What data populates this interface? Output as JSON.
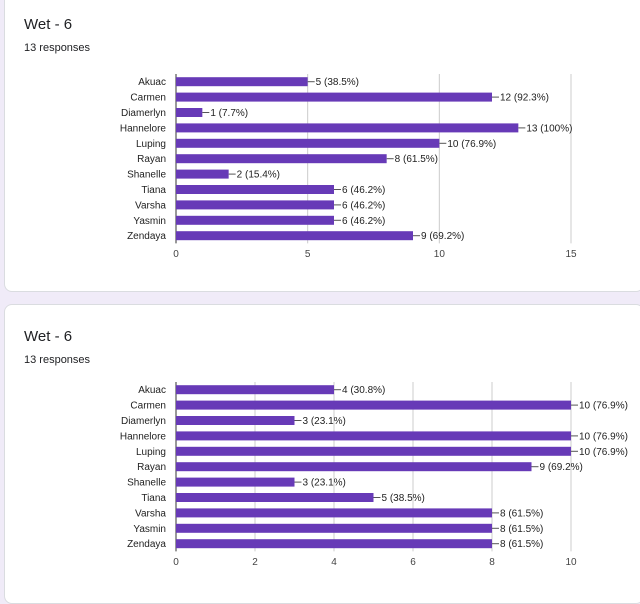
{
  "accent": "#673ab7",
  "cards": [
    {
      "title": "Wet - 6",
      "responses": "13 responses"
    },
    {
      "title": "Wet - 6",
      "responses": "13 responses"
    }
  ],
  "chart_data": [
    {
      "type": "bar",
      "orientation": "horizontal",
      "categories": [
        "Akuac",
        "Carmen",
        "Diamerlyn",
        "Hannelore",
        "Luping",
        "Rayan",
        "Shanelle",
        "Tiana",
        "Varsha",
        "Yasmin",
        "Zendaya"
      ],
      "values": [
        5,
        12,
        1,
        13,
        10,
        8,
        2,
        6,
        6,
        6,
        9
      ],
      "labels": [
        "5 (38.5%)",
        "12 (92.3%)",
        "1 (7.7%)",
        "13 (100%)",
        "10 (76.9%)",
        "8 (61.5%)",
        "2 (15.4%)",
        "6 (46.2%)",
        "6 (46.2%)",
        "6 (46.2%)",
        "9 (69.2%)"
      ],
      "xlim": [
        0,
        15
      ],
      "xticks": [
        0,
        5,
        10,
        15
      ],
      "grid": true,
      "color": "#673ab7"
    },
    {
      "type": "bar",
      "orientation": "horizontal",
      "categories": [
        "Akuac",
        "Carmen",
        "Diamerlyn",
        "Hannelore",
        "Luping",
        "Rayan",
        "Shanelle",
        "Tiana",
        "Varsha",
        "Yasmin",
        "Zendaya"
      ],
      "values": [
        4,
        10,
        3,
        10,
        10,
        9,
        3,
        5,
        8,
        8,
        8
      ],
      "labels": [
        "4 (30.8%)",
        "10 (76.9%)",
        "3 (23.1%)",
        "10 (76.9%)",
        "10 (76.9%)",
        "9 (69.2%)",
        "3 (23.1%)",
        "5 (38.5%)",
        "8 (61.5%)",
        "8 (61.5%)",
        "8 (61.5%)"
      ],
      "xlim": [
        0,
        10
      ],
      "xticks": [
        0,
        2,
        4,
        6,
        8,
        10
      ],
      "grid": true,
      "color": "#673ab7"
    }
  ]
}
